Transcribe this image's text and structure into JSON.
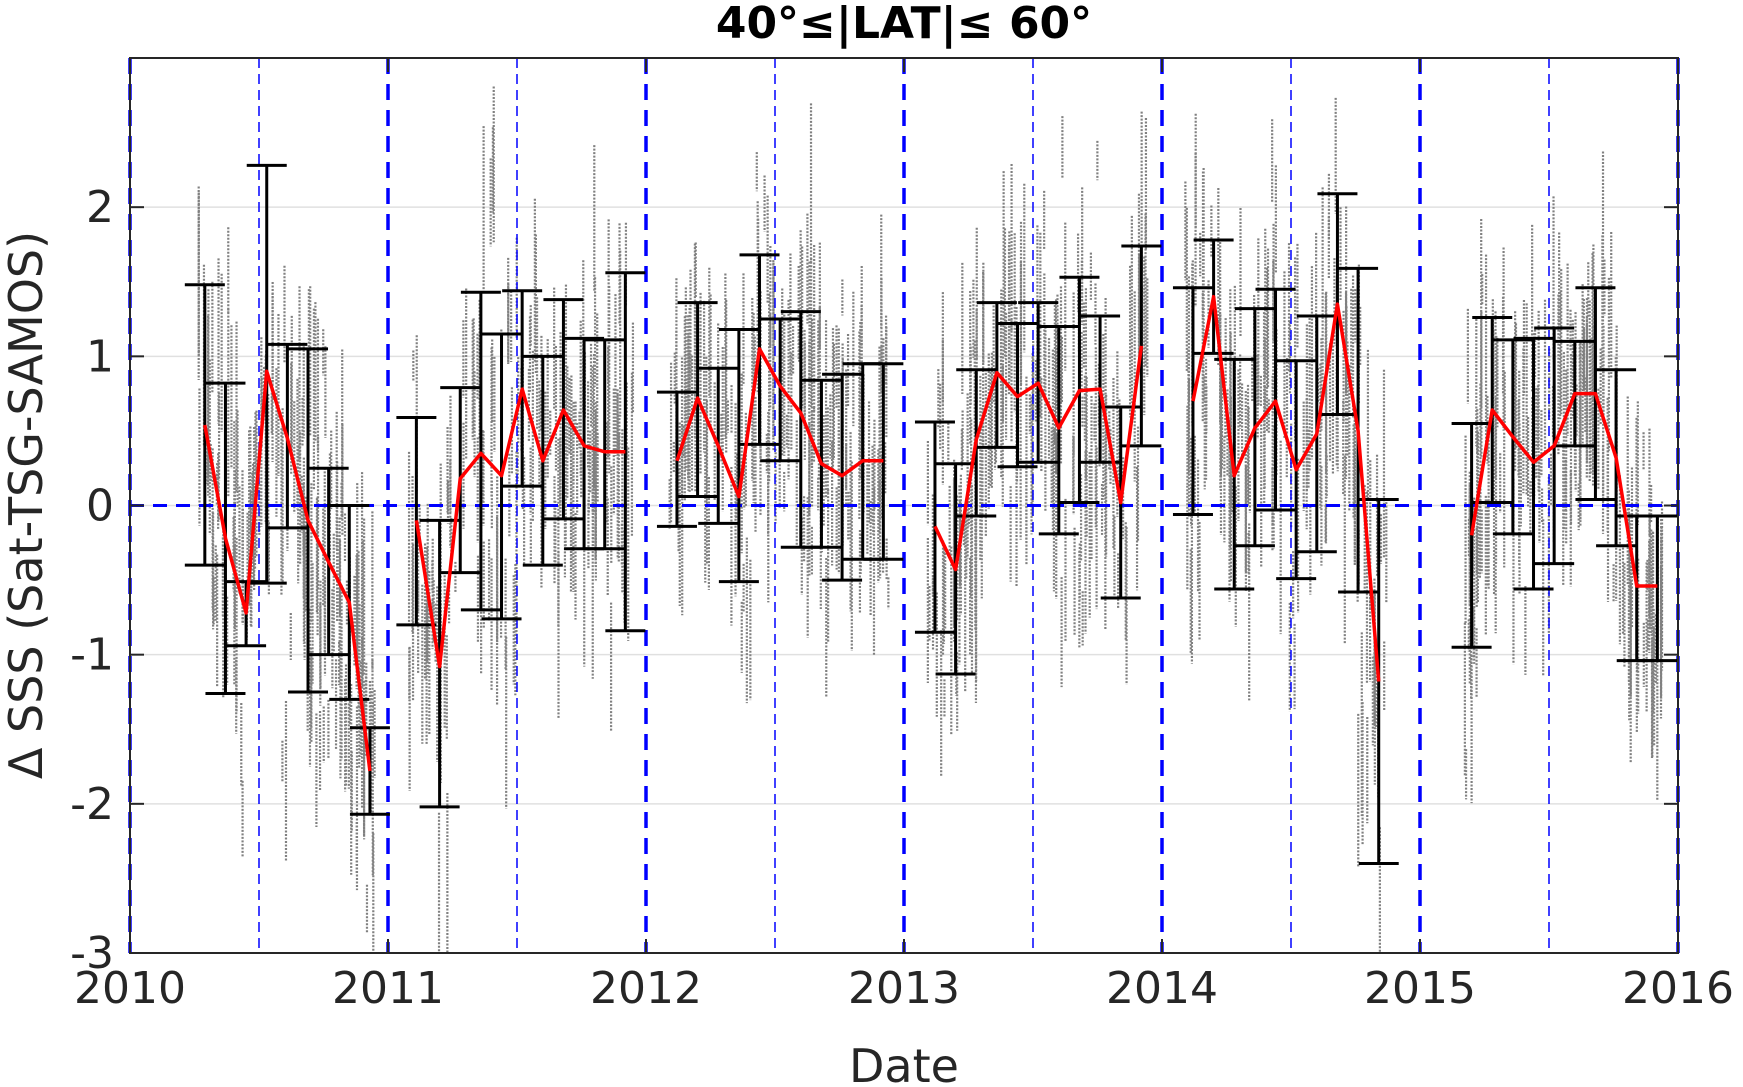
{
  "chart_data": {
    "type": "scatter",
    "title": "40°≤|LAT|≤ 60°",
    "xlabel": "Date",
    "ylabel": "Δ SSS (Sat-TSG-SAMOS)",
    "xlim": [
      2010,
      2016
    ],
    "ylim": [
      -3,
      3
    ],
    "x_ticks": [
      "2010",
      "2011",
      "2012",
      "2013",
      "2014",
      "2015",
      "2016"
    ],
    "y_ticks": [
      "-3",
      "-2",
      "-1",
      "0",
      "1",
      "2"
    ],
    "y_tick_values": [
      -3,
      -2,
      -1,
      0,
      1,
      2
    ],
    "grid": "horizontal",
    "colors": {
      "scatter": "#808080",
      "mean_line": "#ff0000",
      "error_bars": "#000000",
      "reference_lines": "#0000ff",
      "grid": "#e0e0e0"
    },
    "reference_lines": {
      "horizontal_y": 0,
      "year_boundaries": [
        2010,
        2011,
        2012,
        2013,
        2014,
        2015,
        2016
      ],
      "mid_year": [
        2010.5,
        2011.5,
        2012.5,
        2013.5,
        2014.5,
        2015.5
      ]
    },
    "series": [
      {
        "segment": "2010",
        "x": [
          2010.29,
          2010.37,
          2010.45,
          2010.53,
          2010.61,
          2010.69,
          2010.77,
          2010.85,
          2010.93
        ],
        "mean": [
          0.54,
          -0.22,
          -0.72,
          0.9,
          0.45,
          -0.1,
          -0.38,
          -0.65,
          -1.78
        ],
        "upper": [
          1.48,
          0.82,
          -0.51,
          2.28,
          1.08,
          1.05,
          0.25,
          0.0,
          -1.49
        ],
        "lower": [
          -0.4,
          -1.26,
          -0.94,
          -0.52,
          -0.15,
          -1.25,
          -1.0,
          -1.3,
          -2.07
        ]
      },
      {
        "segment": "2011",
        "x": [
          2011.11,
          2011.2,
          2011.28,
          2011.36,
          2011.44,
          2011.52,
          2011.6,
          2011.68,
          2011.76,
          2011.84,
          2011.92
        ],
        "mean": [
          -0.1,
          -1.08,
          0.18,
          0.35,
          0.2,
          0.78,
          0.3,
          0.64,
          0.4,
          0.36,
          0.36
        ],
        "upper": [
          0.59,
          -0.1,
          0.79,
          1.43,
          1.15,
          1.44,
          1.0,
          1.38,
          1.12,
          1.11,
          1.56
        ],
        "lower": [
          -0.8,
          -2.02,
          -0.45,
          -0.7,
          -0.76,
          0.13,
          -0.4,
          -0.09,
          -0.29,
          -0.29,
          -0.84
        ]
      },
      {
        "segment": "2012",
        "x": [
          2012.12,
          2012.2,
          2012.28,
          2012.36,
          2012.44,
          2012.52,
          2012.6,
          2012.68,
          2012.76,
          2012.84,
          2012.92
        ],
        "mean": [
          0.3,
          0.72,
          0.4,
          0.06,
          1.05,
          0.8,
          0.62,
          0.28,
          0.2,
          0.3,
          0.3
        ],
        "upper": [
          0.76,
          1.36,
          0.92,
          1.18,
          1.68,
          1.25,
          1.3,
          0.84,
          0.88,
          0.95,
          0.95
        ],
        "lower": [
          -0.14,
          0.06,
          -0.12,
          -0.51,
          0.41,
          0.3,
          -0.28,
          -0.28,
          -0.5,
          -0.36,
          -0.36
        ]
      },
      {
        "segment": "2013",
        "x": [
          2013.12,
          2013.2,
          2013.28,
          2013.36,
          2013.44,
          2013.52,
          2013.6,
          2013.68,
          2013.76,
          2013.84,
          2013.92
        ],
        "mean": [
          -0.14,
          -0.43,
          0.44,
          0.89,
          0.73,
          0.82,
          0.52,
          0.77,
          0.78,
          0.02,
          1.07
        ],
        "upper": [
          0.56,
          0.28,
          0.91,
          1.36,
          1.22,
          1.36,
          1.2,
          1.53,
          1.27,
          0.66,
          1.74
        ],
        "lower": [
          -0.85,
          -1.13,
          -0.07,
          0.39,
          0.26,
          0.29,
          -0.19,
          0.02,
          0.29,
          -0.62,
          0.4
        ]
      },
      {
        "segment": "2014",
        "x": [
          2014.12,
          2014.2,
          2014.28,
          2014.36,
          2014.44,
          2014.52,
          2014.6,
          2014.68,
          2014.76,
          2014.84
        ],
        "mean": [
          0.7,
          1.4,
          0.2,
          0.52,
          0.7,
          0.24,
          0.48,
          1.35,
          0.5,
          -1.18
        ],
        "upper": [
          1.46,
          1.78,
          0.98,
          1.32,
          1.45,
          0.97,
          1.27,
          2.09,
          1.59,
          0.04
        ],
        "lower": [
          -0.06,
          1.02,
          -0.56,
          -0.27,
          -0.03,
          -0.49,
          -0.31,
          0.61,
          -0.58,
          -2.4
        ]
      },
      {
        "segment": "2015",
        "x": [
          2015.2,
          2015.28,
          2015.36,
          2015.44,
          2015.52,
          2015.6,
          2015.68,
          2015.76,
          2015.84,
          2015.92
        ],
        "mean": [
          -0.2,
          0.64,
          0.46,
          0.29,
          0.4,
          0.75,
          0.75,
          0.32,
          -0.54,
          -0.54
        ],
        "upper": [
          0.55,
          1.26,
          1.11,
          1.12,
          1.19,
          1.1,
          1.46,
          0.91,
          -0.07,
          -0.07
        ],
        "lower": [
          -0.95,
          0.02,
          -0.19,
          -0.56,
          -0.39,
          0.4,
          0.04,
          -0.27,
          -1.04,
          -1.04
        ]
      }
    ]
  }
}
